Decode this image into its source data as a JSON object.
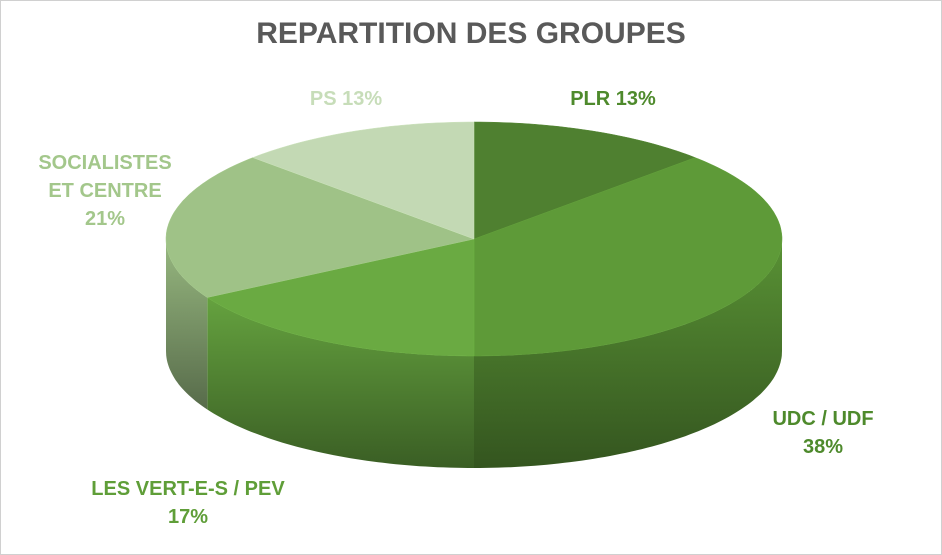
{
  "chart_data": {
    "type": "pie",
    "title": "REPARTITION DES GROUPES",
    "categories": [
      "PLR",
      "UDC / UDF",
      "LES VERT-E-S / PEV",
      "SOCIALISTES ET CENTRE",
      "PS"
    ],
    "values": [
      13,
      38,
      17,
      21,
      13
    ],
    "value_labels": [
      "13%",
      "38%",
      "17%",
      "21%",
      "13%"
    ],
    "colors": [
      "#4f8030",
      "#5e9a38",
      "#6aaa42",
      "#9fc287",
      "#c3d9b4"
    ],
    "label_colors": [
      "#4e8a2c",
      "#4e8a2c",
      "#5f9e38",
      "#a3c78b",
      "#c7ddb9"
    ]
  }
}
